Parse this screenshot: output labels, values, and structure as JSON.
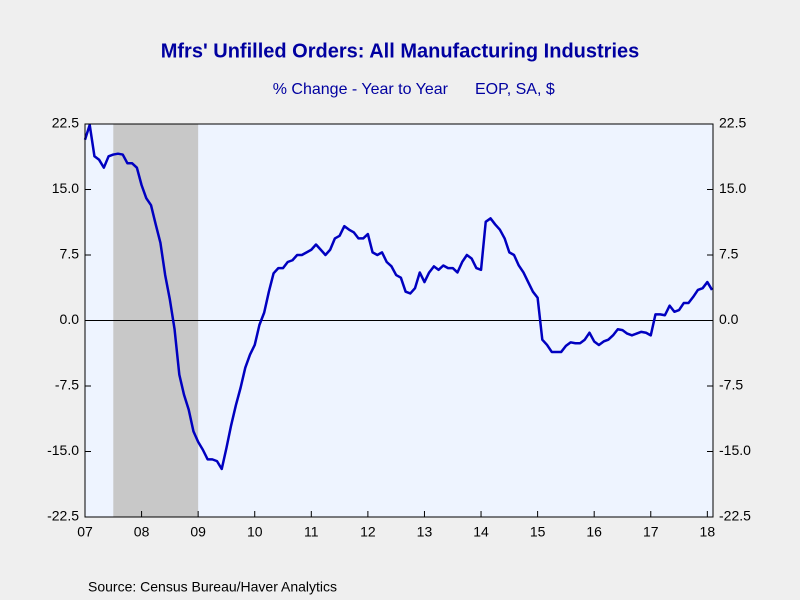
{
  "chart_data": {
    "type": "line",
    "title": "Mfrs' Unfilled Orders: All Manufacturing Industries",
    "subtitle": "% Change - Year to Year",
    "units_note": "EOP, SA, $",
    "source": "Source:  Census Bureau/Haver Analytics",
    "x": [
      2007.5,
      2007.583,
      2007.667,
      2007.75,
      2007.833,
      2007.917,
      2008,
      2008.083,
      2008.167,
      2008.25,
      2008.333,
      2008.417,
      2008.5,
      2008.583,
      2008.667,
      2008.75,
      2008.833,
      2008.917,
      2009,
      2009.083,
      2009.167,
      2009.25,
      2009.333,
      2009.417,
      2009.5,
      2009.583,
      2009.667,
      2009.75,
      2009.833,
      2009.917,
      2010,
      2010.083,
      2010.167,
      2010.25,
      2010.333,
      2010.417,
      2010.5,
      2010.583,
      2010.667,
      2010.75,
      2010.833,
      2010.917,
      2011,
      2011.083,
      2011.167,
      2011.25,
      2011.333,
      2011.417,
      2011.5,
      2011.583,
      2011.667,
      2011.75,
      2011.833,
      2011.917,
      2012,
      2012.083,
      2012.167,
      2012.25,
      2012.333,
      2012.417,
      2012.5,
      2012.583,
      2012.667,
      2012.75,
      2012.833,
      2012.917,
      2013,
      2013.083,
      2013.167,
      2013.25,
      2013.333,
      2013.417,
      2013.5,
      2013.583,
      2013.667,
      2013.75,
      2013.833,
      2013.917,
      2014,
      2014.083,
      2014.167,
      2014.25,
      2014.333,
      2014.417,
      2014.5,
      2014.583,
      2014.667,
      2014.75,
      2014.833,
      2014.917,
      2015,
      2015.083,
      2015.167,
      2015.25,
      2015.333,
      2015.417,
      2015.5,
      2015.583,
      2015.667,
      2015.75,
      2015.833,
      2015.917,
      2016,
      2016.083,
      2016.167,
      2016.25,
      2016.333,
      2016.417,
      2016.5,
      2016.583,
      2016.667,
      2016.75,
      2016.833,
      2016.917,
      2017,
      2017.083,
      2017.167,
      2017.25,
      2017.333,
      2017.417,
      2017.5,
      2017.583,
      2017.667,
      2017.75,
      2017.833,
      2017.917,
      2018,
      2018.083,
      2018.167,
      2018.25,
      2018.333,
      2018.417,
      2018.5,
      2018.583
    ],
    "series": [
      {
        "color": "#0000c0",
        "values": [
          20.7,
          22.4,
          18.8,
          18.4,
          17.5,
          18.8,
          19.0,
          19.1,
          19.0,
          18.0,
          18.0,
          17.5,
          15.5,
          14.0,
          13.2,
          11.0,
          8.9,
          5.2,
          2.4,
          -1.0,
          -6.2,
          -8.5,
          -10.2,
          -12.7,
          -13.9,
          -14.8,
          -15.9,
          -15.9,
          -16.1,
          -17.0,
          -14.6,
          -12.0,
          -9.7,
          -7.7,
          -5.4,
          -3.9,
          -2.8,
          -0.5,
          0.9,
          3.3,
          5.4,
          6.0,
          6.0,
          6.7,
          6.9,
          7.5,
          7.5,
          7.8,
          8.1,
          8.7,
          8.1,
          7.5,
          8.1,
          9.4,
          9.7,
          10.8,
          10.4,
          10.1,
          9.4,
          9.4,
          9.9,
          7.8,
          7.5,
          7.8,
          6.7,
          6.2,
          5.2,
          4.9,
          3.3,
          3.1,
          3.7,
          5.5,
          4.4,
          5.5,
          6.2,
          5.8,
          6.3,
          6.0,
          6.0,
          5.5,
          6.7,
          7.5,
          7.1,
          6.0,
          5.8,
          11.3,
          11.7,
          11.0,
          10.4,
          9.4,
          7.8,
          7.5,
          6.3,
          5.5,
          4.4,
          3.3,
          2.6,
          -2.2,
          -2.8,
          -3.6,
          -3.6,
          -3.6,
          -2.9,
          -2.5,
          -2.6,
          -2.6,
          -2.2,
          -1.4,
          -2.4,
          -2.8,
          -2.4,
          -2.2,
          -1.7,
          -1.0,
          -1.1,
          -1.5,
          -1.7,
          -1.5,
          -1.3,
          -1.4,
          -1.7,
          0.7,
          0.7,
          0.6,
          1.7,
          1.0,
          1.2,
          2.0,
          2.0,
          2.7,
          3.5,
          3.7,
          4.4,
          3.5
        ]
      }
    ],
    "xlim": [
      2007.5,
      2018.6
    ],
    "xticks": [
      {
        "value": 2007.5,
        "label": "07"
      },
      {
        "value": 2008.5,
        "label": "08"
      },
      {
        "value": 2009.5,
        "label": "09"
      },
      {
        "value": 2010.5,
        "label": "10"
      },
      {
        "value": 2011.5,
        "label": "11"
      },
      {
        "value": 2012.5,
        "label": "12"
      },
      {
        "value": 2013.5,
        "label": "13"
      },
      {
        "value": 2014.5,
        "label": "14"
      },
      {
        "value": 2015.5,
        "label": "15"
      },
      {
        "value": 2016.5,
        "label": "16"
      },
      {
        "value": 2017.5,
        "label": "17"
      },
      {
        "value": 2018.5,
        "label": "18"
      }
    ],
    "ylim": [
      -22.5,
      22.5
    ],
    "yticks": [
      {
        "value": 22.5,
        "label": "22.5"
      },
      {
        "value": 15,
        "label": "15.0"
      },
      {
        "value": 7.5,
        "label": "7.5"
      },
      {
        "value": 0,
        "label": "0.0"
      },
      {
        "value": -7.5,
        "label": "-7.5"
      },
      {
        "value": -15,
        "label": "-15.0"
      },
      {
        "value": -22.5,
        "label": "-22.5"
      }
    ],
    "shaded_regions": [
      [
        2008.0,
        2009.5
      ]
    ],
    "shade_color": "#c8c8c8",
    "zero_line": true
  }
}
